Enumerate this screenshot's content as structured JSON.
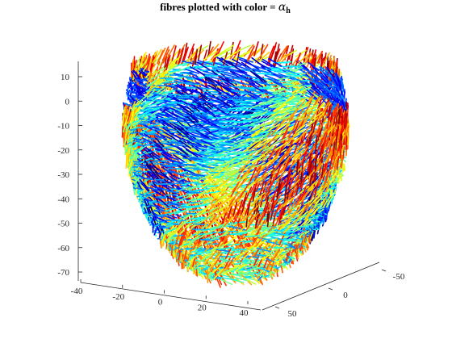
{
  "chart_data": {
    "type": "scatter",
    "title": {
      "text": "fibres plotted with color = ",
      "symbol": "α",
      "subscript": "h"
    },
    "xlabel": "",
    "ylabel": "",
    "zlabel": "",
    "colormap": "jet",
    "grid": false,
    "legend": "none",
    "x_ticks": [
      {
        "value": -40,
        "label": "-40"
      },
      {
        "value": -20,
        "label": "-20"
      },
      {
        "value": 0,
        "label": "0"
      },
      {
        "value": 20,
        "label": "20"
      },
      {
        "value": 40,
        "label": "40"
      }
    ],
    "y_ticks": [
      {
        "value": -50,
        "label": "-50"
      },
      {
        "value": 0,
        "label": "0"
      },
      {
        "value": 50,
        "label": "50"
      }
    ],
    "z_ticks": [
      {
        "value": 10,
        "label": "10"
      },
      {
        "value": 0,
        "label": "0"
      },
      {
        "value": -10,
        "label": "-10"
      },
      {
        "value": -20,
        "label": "-20"
      },
      {
        "value": -30,
        "label": "-30"
      },
      {
        "value": -40,
        "label": "-40"
      },
      {
        "value": -50,
        "label": "-50"
      },
      {
        "value": -60,
        "label": "-60"
      },
      {
        "value": -70,
        "label": "-70"
      }
    ],
    "xlim": [
      -45,
      45
    ],
    "ylim": [
      -60,
      60
    ],
    "zlim": [
      -75,
      15
    ],
    "geometry": {
      "description": "ventricle-shaped shell of short fibre segments",
      "base_z": 15,
      "apex_z": -73,
      "base_radius": 40,
      "max_radius": 44,
      "fibre_length": 3.0
    }
  }
}
